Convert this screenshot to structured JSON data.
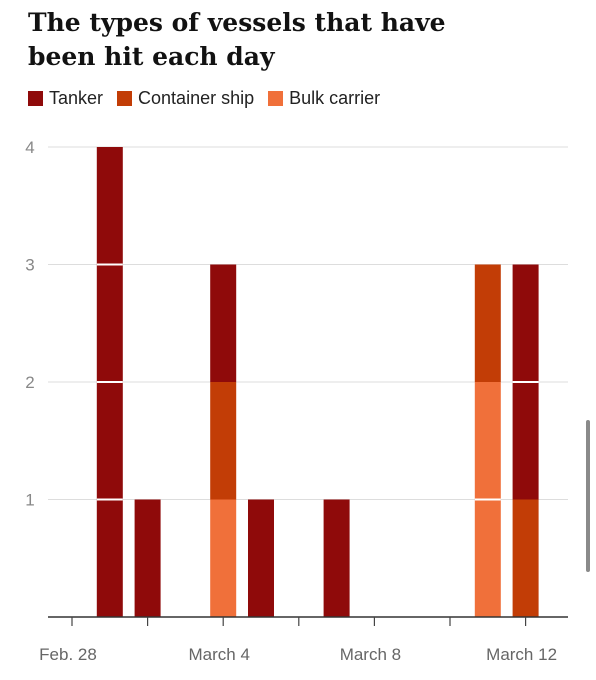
{
  "title": "The types of vessels that have been hit each day",
  "legend": [
    {
      "label": "Tanker",
      "color": "#8f0a0a"
    },
    {
      "label": "Container ship",
      "color": "#c23d06"
    },
    {
      "label": "Bulk carrier",
      "color": "#f0703a"
    }
  ],
  "chart_data": {
    "type": "bar",
    "stacked": true,
    "title": "The types of vessels that have been hit each day",
    "xlabel": "",
    "ylabel": "",
    "ylim": [
      0,
      4
    ],
    "y_ticks": [
      "1",
      "2",
      "3",
      "4"
    ],
    "x_tick_labels": [
      "Feb. 28",
      "March 4",
      "March 8",
      "March 12"
    ],
    "categories": [
      "Mar 1",
      "Mar 2",
      "Mar 3",
      "Mar 4",
      "Mar 5",
      "Mar 6",
      "Mar 7",
      "Mar 8",
      "Mar 9",
      "Mar 10",
      "Mar 11",
      "Mar 12"
    ],
    "series": [
      {
        "name": "Bulk carrier",
        "color": "#f0703a",
        "values": [
          0,
          0,
          0,
          1,
          0,
          0,
          0,
          0,
          0,
          0,
          2,
          0
        ]
      },
      {
        "name": "Container ship",
        "color": "#c23d06",
        "values": [
          0,
          0,
          0,
          1,
          0,
          0,
          0,
          0,
          0,
          0,
          1,
          1
        ]
      },
      {
        "name": "Tanker",
        "color": "#8f0a0a",
        "values": [
          4,
          1,
          0,
          1,
          1,
          0,
          1,
          0,
          0,
          0,
          0,
          2
        ]
      }
    ],
    "grid": true,
    "legend_position": "top-left"
  }
}
